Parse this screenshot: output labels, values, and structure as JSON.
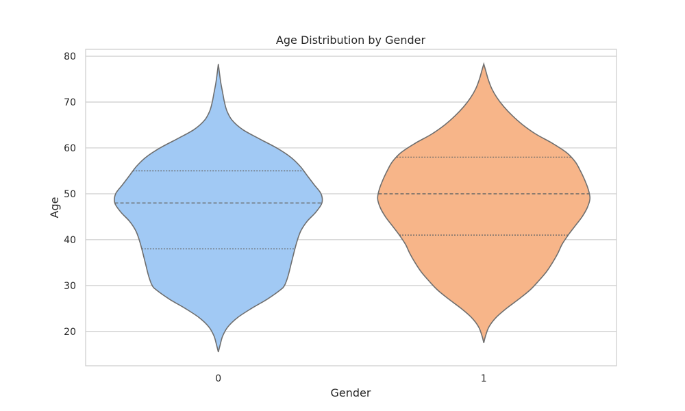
{
  "chart_data": {
    "type": "violin",
    "title": "Age Distribution by Gender",
    "xlabel": "Gender",
    "ylabel": "Age",
    "ylim": [
      12.5,
      81.5
    ],
    "yticks": [
      20,
      30,
      40,
      50,
      60,
      70,
      80
    ],
    "grid": true,
    "categories": [
      "0",
      "1"
    ],
    "series": [
      {
        "category": "0",
        "color": "#a1c9f4",
        "min": 15.5,
        "max": 78.3,
        "q1": 38,
        "median": 48,
        "q3": 55,
        "density_profile": [
          [
            15.5,
            0.0
          ],
          [
            17,
            0.02
          ],
          [
            19,
            0.05
          ],
          [
            21,
            0.11
          ],
          [
            23,
            0.22
          ],
          [
            25,
            0.38
          ],
          [
            27,
            0.56
          ],
          [
            29,
            0.71
          ],
          [
            30,
            0.76
          ],
          [
            32,
            0.8
          ],
          [
            35,
            0.84
          ],
          [
            38,
            0.88
          ],
          [
            40,
            0.91
          ],
          [
            42,
            0.95
          ],
          [
            44,
            1.02
          ],
          [
            46,
            1.12
          ],
          [
            48,
            1.19
          ],
          [
            50,
            1.18
          ],
          [
            52,
            1.1
          ],
          [
            54,
            1.02
          ],
          [
            56,
            0.94
          ],
          [
            58,
            0.83
          ],
          [
            60,
            0.67
          ],
          [
            62,
            0.47
          ],
          [
            64,
            0.28
          ],
          [
            66,
            0.16
          ],
          [
            68,
            0.1
          ],
          [
            70,
            0.07
          ],
          [
            72,
            0.05
          ],
          [
            74,
            0.03
          ],
          [
            76,
            0.015
          ],
          [
            78.3,
            0.0
          ]
        ]
      },
      {
        "category": "1",
        "color": "#f7b589",
        "min": 17.5,
        "max": 78.3,
        "q1": 41,
        "median": 50,
        "q3": 58,
        "density_profile": [
          [
            17.5,
            0.0
          ],
          [
            19,
            0.02
          ],
          [
            21,
            0.06
          ],
          [
            23,
            0.14
          ],
          [
            25,
            0.26
          ],
          [
            27,
            0.4
          ],
          [
            29,
            0.53
          ],
          [
            31,
            0.63
          ],
          [
            33,
            0.72
          ],
          [
            35,
            0.79
          ],
          [
            37,
            0.85
          ],
          [
            39,
            0.9
          ],
          [
            41,
            0.97
          ],
          [
            43,
            1.05
          ],
          [
            45,
            1.13
          ],
          [
            47,
            1.19
          ],
          [
            49,
            1.22
          ],
          [
            51,
            1.2
          ],
          [
            53,
            1.16
          ],
          [
            55,
            1.11
          ],
          [
            57,
            1.05
          ],
          [
            59,
            0.95
          ],
          [
            61,
            0.79
          ],
          [
            63,
            0.6
          ],
          [
            65,
            0.45
          ],
          [
            67,
            0.33
          ],
          [
            69,
            0.23
          ],
          [
            71,
            0.15
          ],
          [
            73,
            0.09
          ],
          [
            75,
            0.05
          ],
          [
            77,
            0.02
          ],
          [
            78.3,
            0.0
          ]
        ]
      }
    ]
  }
}
